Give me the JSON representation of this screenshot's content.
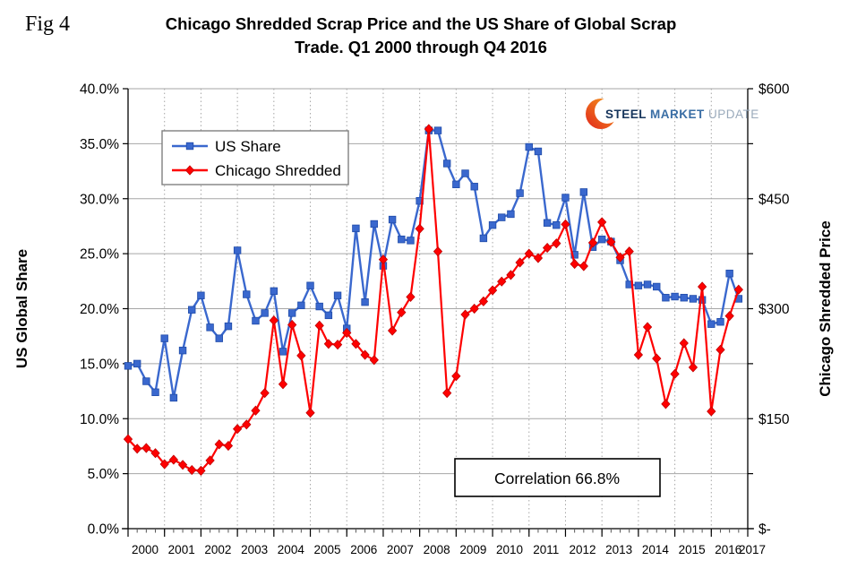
{
  "figure": {
    "fig_label": "Fig 4",
    "title_line1": "Chicago Shredded Scrap Price and the US Share of Global Scrap",
    "title_line2": "Trade. Q1 2000 through Q4 2016"
  },
  "logo": {
    "steel": "STEEL",
    "market": "MARKET",
    "update": "UPDATE"
  },
  "annotation": {
    "correlation_text": "Correlation 66.8%"
  },
  "colors": {
    "us_share_line": "#3a68ce",
    "us_share_marker_edge": "#1f4ba8",
    "chicago_line": "#fe0000",
    "chicago_marker_edge": "#c00000",
    "gridline": "#a6a6a6",
    "axis": "#000000",
    "logo_orange_top": "#f6a21d",
    "logo_red_bottom": "#e1261c"
  },
  "chart_data": {
    "type": "line",
    "title": "Chicago Shredded Scrap Price and the US Share of Global Scrap Trade. Q1 2000 through Q4 2016",
    "x_start": "Q1 2000",
    "x_end": "Q4 2016",
    "points_per_year": 4,
    "x_tick_labels": [
      "2000",
      "2001",
      "2002",
      "2003",
      "2004",
      "2005",
      "2006",
      "2007",
      "2008",
      "2009",
      "2010",
      "2011",
      "2012",
      "2013",
      "2014",
      "2015",
      "2016",
      "2017"
    ],
    "left_axis": {
      "label": "US Global Share",
      "min": 0,
      "max": 40,
      "tick_labels": [
        "0.0%",
        "5.0%",
        "10.0%",
        "15.0%",
        "20.0%",
        "25.0%",
        "30.0%",
        "35.0%",
        "40.0%"
      ]
    },
    "right_axis": {
      "label": "Chicago Shredded Price",
      "min": 0,
      "max": 600,
      "minor_step": 75,
      "tick_labels": [
        "$-",
        "$150",
        "$300",
        "$450",
        "$600"
      ]
    },
    "grid": {
      "horizontal": "solid",
      "vertical": "dotted"
    },
    "legend_position": "upper-left",
    "series": [
      {
        "name": "US  Share",
        "axis": "left",
        "marker": "square",
        "color": "#3a68ce",
        "values": [
          14.8,
          15.0,
          13.4,
          12.4,
          17.3,
          11.9,
          16.2,
          19.9,
          21.2,
          18.3,
          17.3,
          18.4,
          25.3,
          21.3,
          18.9,
          19.6,
          21.6,
          16.1,
          19.6,
          20.3,
          22.1,
          20.2,
          19.4,
          21.2,
          18.2,
          27.3,
          20.6,
          27.7,
          23.9,
          28.1,
          26.3,
          26.2,
          29.8,
          36.2,
          36.2,
          33.2,
          31.3,
          32.3,
          31.1,
          26.4,
          27.6,
          28.3,
          28.6,
          30.5,
          34.7,
          34.3,
          27.8,
          27.6,
          30.1,
          24.9,
          30.6,
          25.6,
          26.3,
          26.1,
          24.4,
          22.2,
          22.1,
          22.2,
          22.0,
          21.0,
          21.1,
          21.0,
          20.9,
          20.8,
          18.6,
          18.8,
          23.2,
          20.9
        ]
      },
      {
        "name": "Chicago Shredded",
        "axis": "right",
        "marker": "diamond",
        "color": "#fe0000",
        "values": [
          122,
          109,
          110,
          103,
          88,
          94,
          87,
          80,
          79,
          93,
          115,
          113,
          136,
          142,
          161,
          185,
          284,
          197,
          278,
          236,
          158,
          277,
          252,
          251,
          267,
          252,
          237,
          230,
          367,
          270,
          295,
          316,
          409,
          545,
          378,
          185,
          208,
          292,
          300,
          310,
          325,
          337,
          346,
          363,
          375,
          369,
          383,
          389,
          415,
          361,
          358,
          390,
          418,
          391,
          370,
          378,
          237,
          275,
          232,
          170,
          211,
          253,
          220,
          330,
          160,
          244,
          290,
          326
        ]
      }
    ]
  }
}
